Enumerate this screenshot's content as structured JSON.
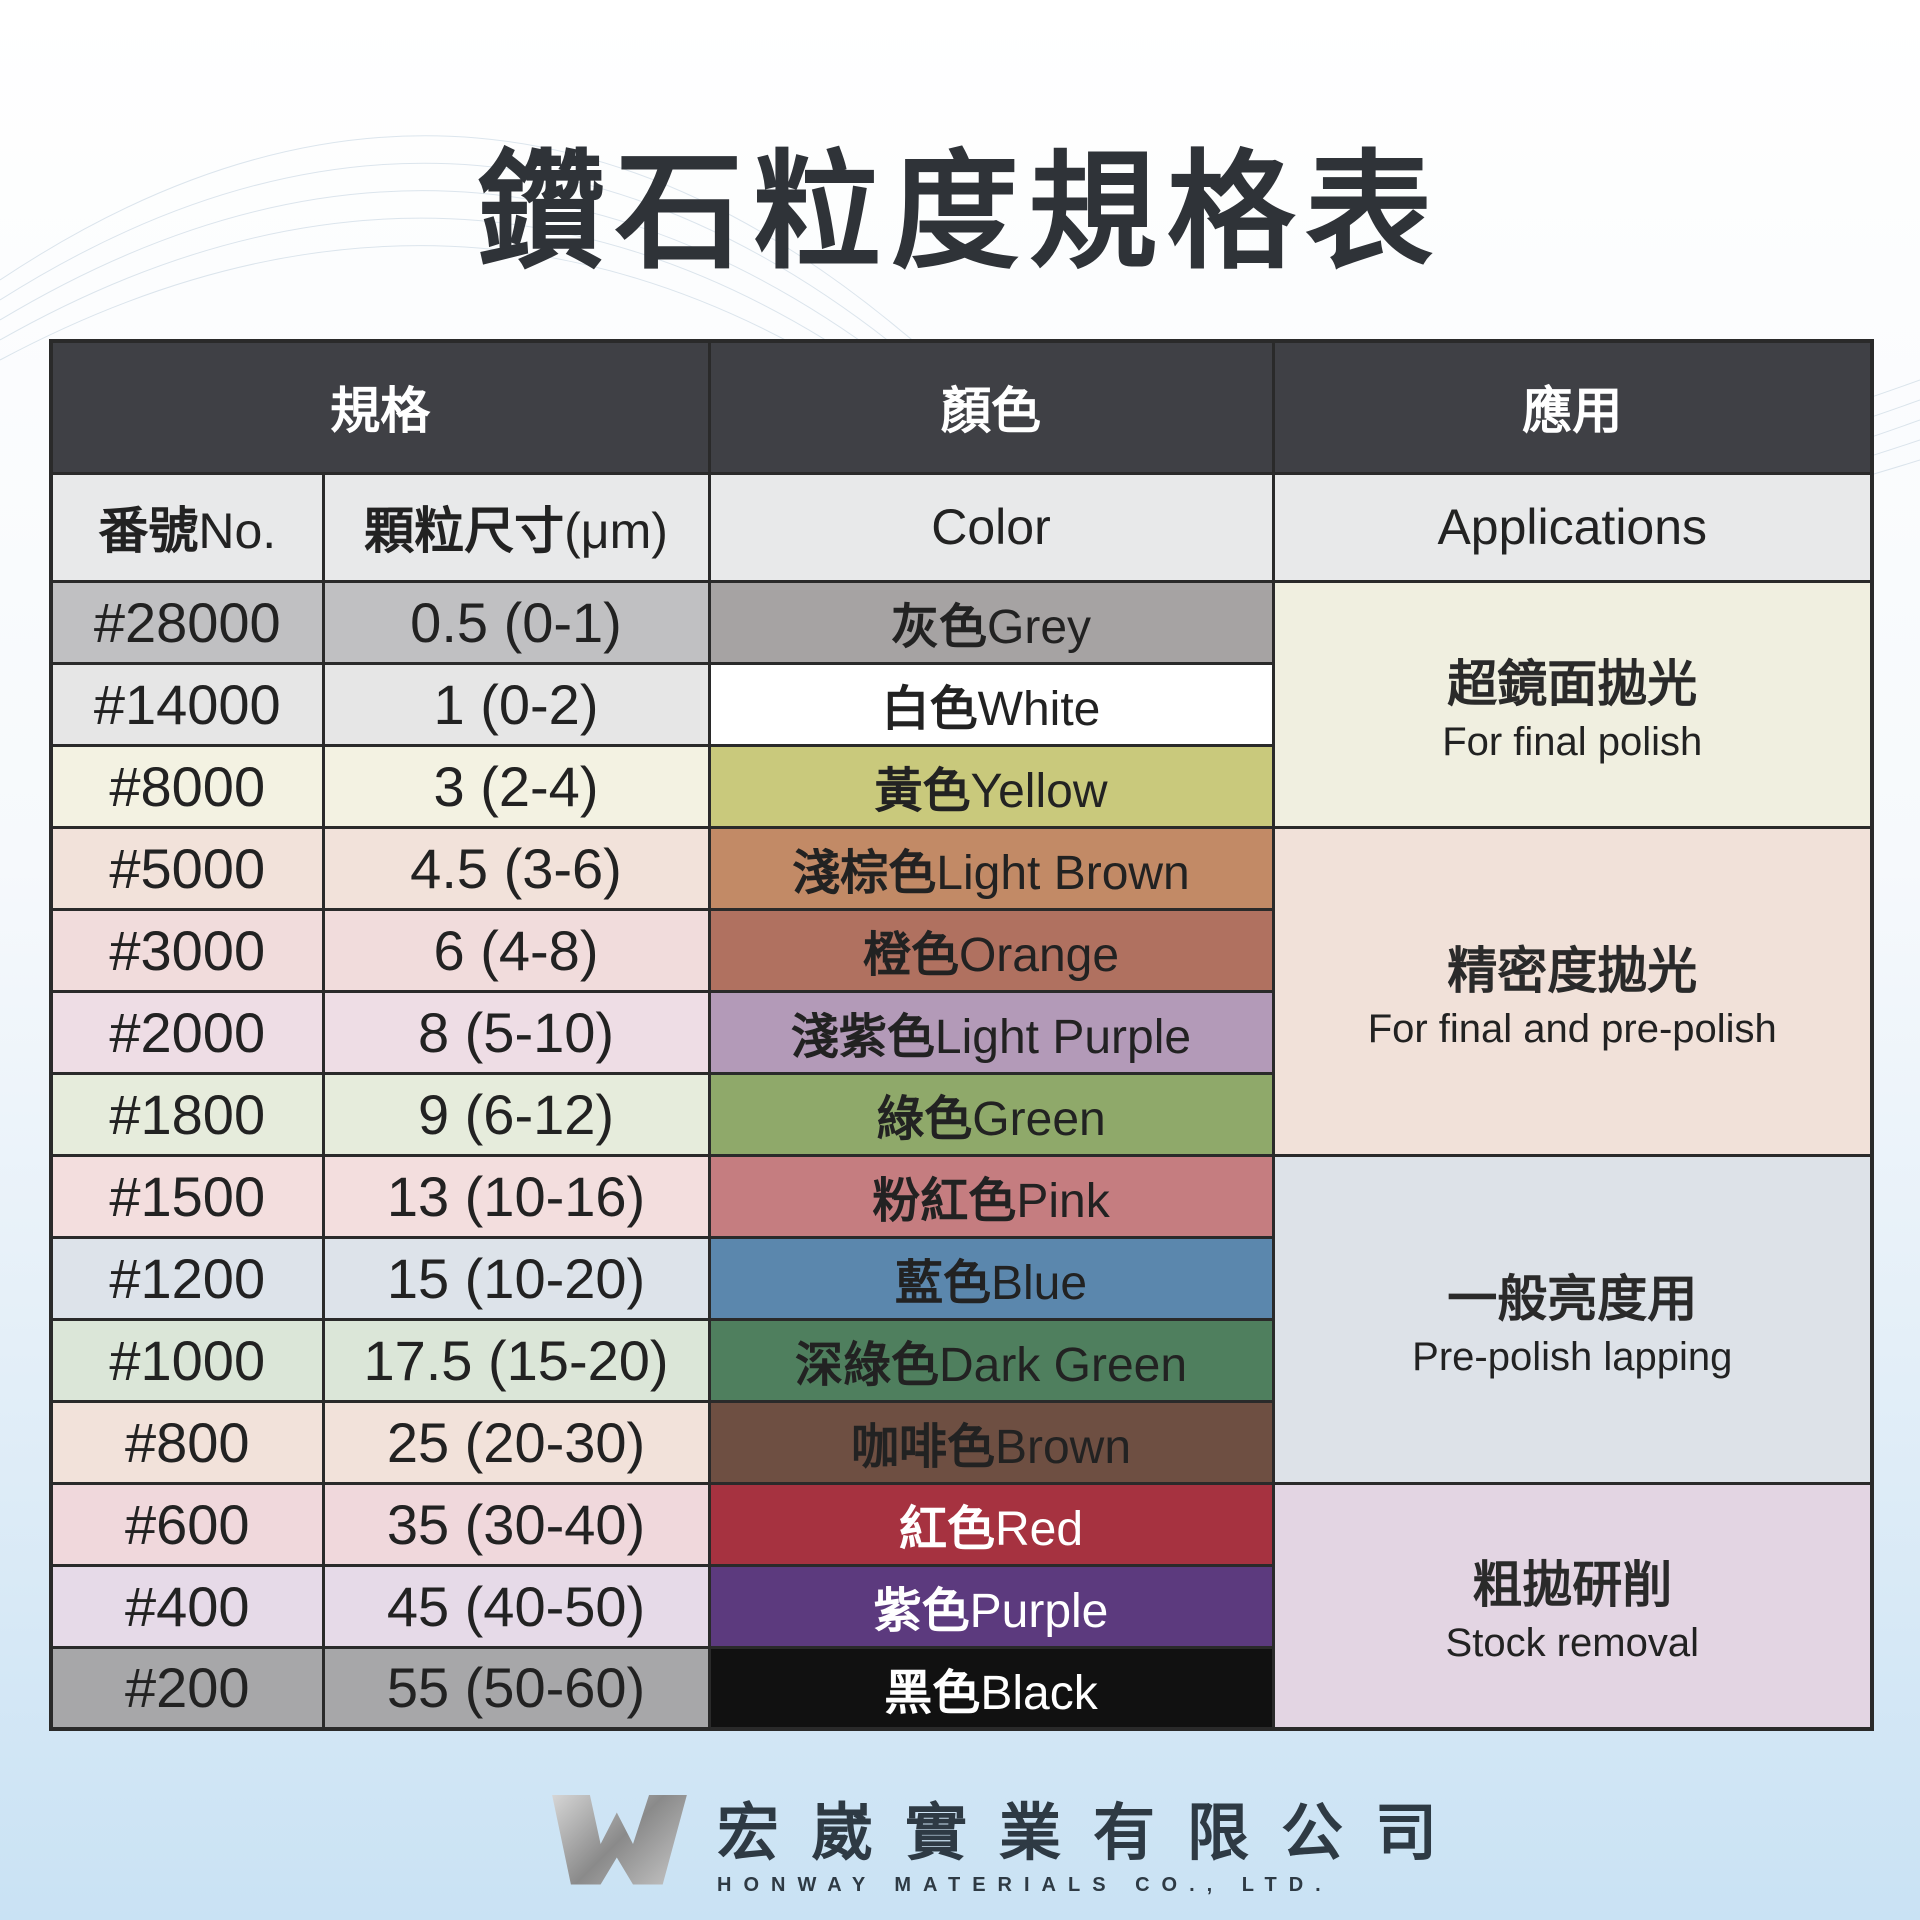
{
  "title": "鑽石粒度規格表",
  "header": {
    "spec": "規格",
    "color": "顏色",
    "application": "應用"
  },
  "subheader": {
    "no_cn": "番號",
    "no_en": "No.",
    "size_cn": "顆粒尺寸",
    "size_en": "(μm)",
    "color": "Color",
    "application": "Applications"
  },
  "rows": [
    {
      "no": "#28000",
      "size": "0.5 (0-1)",
      "color_cn": "灰色",
      "color_en": "Grey",
      "bg": "#c0c0c2",
      "swatch": "#a6a3a3",
      "text": "#222"
    },
    {
      "no": "#14000",
      "size": "1 (0-2)",
      "color_cn": "白色",
      "color_en": "White",
      "bg": "#e6e6e6",
      "swatch": "#ffffff",
      "text": "#222"
    },
    {
      "no": "#8000",
      "size": "3 (2-4)",
      "color_cn": "黃色",
      "color_en": "Yellow",
      "bg": "#f3f2e2",
      "swatch": "#c9c97c",
      "text": "#222"
    },
    {
      "no": "#5000",
      "size": "4.5 (3-6)",
      "color_cn": "淺棕色",
      "color_en": "Light Brown",
      "bg": "#f2e2da",
      "swatch": "#c28a66",
      "text": "#222"
    },
    {
      "no": "#3000",
      "size": "6 (4-8)",
      "color_cn": "橙色",
      "color_en": "Orange",
      "bg": "#f1dcdc",
      "swatch": "#b07160",
      "text": "#222"
    },
    {
      "no": "#2000",
      "size": "8 (5-10)",
      "color_cn": "淺紫色",
      "color_en": "Light Purple",
      "bg": "#eedde5",
      "swatch": "#b39ab8",
      "text": "#222"
    },
    {
      "no": "#1800",
      "size": "9 (6-12)",
      "color_cn": "綠色",
      "color_en": "Green",
      "bg": "#e6ecdc",
      "swatch": "#8fa96a",
      "text": "#222"
    },
    {
      "no": "#1500",
      "size": "13 (10-16)",
      "color_cn": "粉紅色",
      "color_en": "Pink",
      "bg": "#f3dede",
      "swatch": "#c57d80",
      "text": "#222"
    },
    {
      "no": "#1200",
      "size": "15 (10-20)",
      "color_cn": "藍色",
      "color_en": "Blue",
      "bg": "#dde3ea",
      "swatch": "#5b87ad",
      "text": "#222"
    },
    {
      "no": "#1000",
      "size": "17.5 (15-20)",
      "color_cn": "深綠色",
      "color_en": "Dark Green",
      "bg": "#dbe6d8",
      "swatch": "#4f7f5e",
      "text": "#222"
    },
    {
      "no": "#800",
      "size": "25 (20-30)",
      "color_cn": "咖啡色",
      "color_en": "Brown",
      "bg": "#f2e2da",
      "swatch": "#6e4f42",
      "text": "#222"
    },
    {
      "no": "#600",
      "size": "35 (30-40)",
      "color_cn": "紅色",
      "color_en": "Red",
      "bg": "#f0d8dc",
      "swatch": "#a63240",
      "text": "#ffffff"
    },
    {
      "no": "#400",
      "size": "45 (40-50)",
      "color_cn": "紫色",
      "color_en": "Purple",
      "bg": "#e6dae8",
      "swatch": "#5c3a7e",
      "text": "#ffffff"
    },
    {
      "no": "#200",
      "size": "55 (50-60)",
      "color_cn": "黑色",
      "color_en": "Black",
      "bg": "#a7a7a9",
      "swatch": "#111111",
      "text": "#ffffff"
    }
  ],
  "applications": [
    {
      "cn": "超鏡面拋光",
      "en": "For final polish",
      "bg": "#f0efe0",
      "span": 3
    },
    {
      "cn": "精密度拋光",
      "en": "For final and pre-polish",
      "bg": "#f1e1d9",
      "span": 4
    },
    {
      "cn": "一般亮度用",
      "en": "Pre-polish lapping",
      "bg": "#dde2e8",
      "span": 4
    },
    {
      "cn": "粗拋研削",
      "en": "Stock removal",
      "bg": "#e3d5e3",
      "span": 3
    }
  ],
  "footer": {
    "company_cn": "宏崴實業有限公司",
    "company_en": "HONWAY MATERIALS CO., LTD.",
    "logo_text": "HW"
  }
}
